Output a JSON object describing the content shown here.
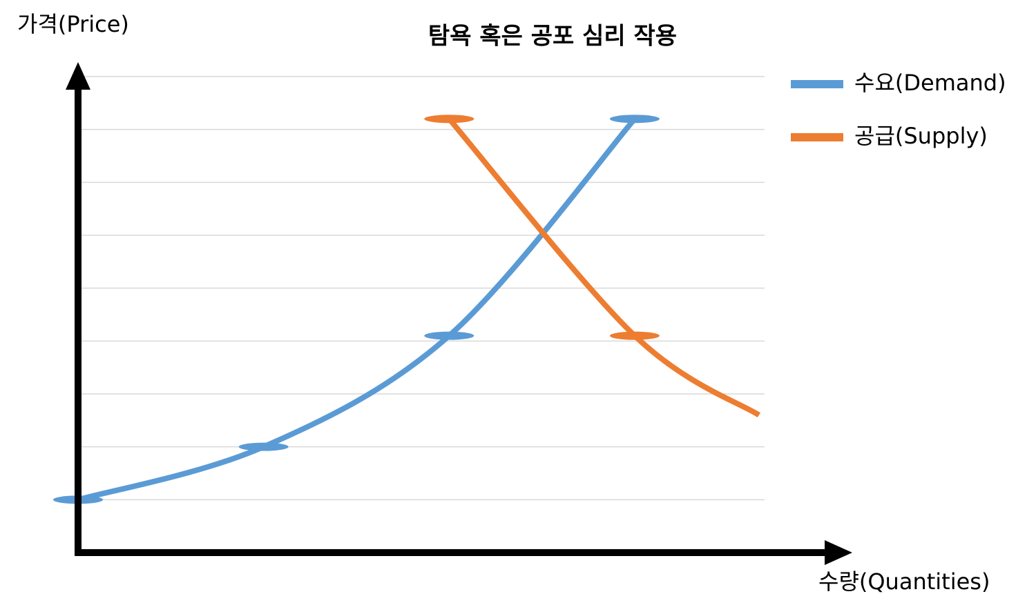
{
  "chart_data": {
    "type": "line",
    "title": "탐욕 혹은 공포 심리 작용",
    "y_label": "가격(Price)",
    "x_label": "수량(Quantities)",
    "series": [
      {
        "name": "수요(Demand)",
        "color": "#5b9bd5",
        "x": [
          0,
          1,
          2,
          3
        ],
        "values": [
          1,
          2,
          4.1,
          8.2
        ]
      },
      {
        "name": "공급(Supply)",
        "color": "#ed7d31",
        "x": [
          2,
          3,
          3.67
        ],
        "values": [
          8.2,
          4.1,
          2.6
        ]
      }
    ],
    "xlim": [
      0,
      3.7
    ],
    "ylim": [
      0,
      9
    ],
    "yticks": [
      0,
      1,
      2,
      3,
      4,
      5,
      6,
      7,
      8,
      9
    ],
    "grid": true,
    "legend": "right"
  }
}
